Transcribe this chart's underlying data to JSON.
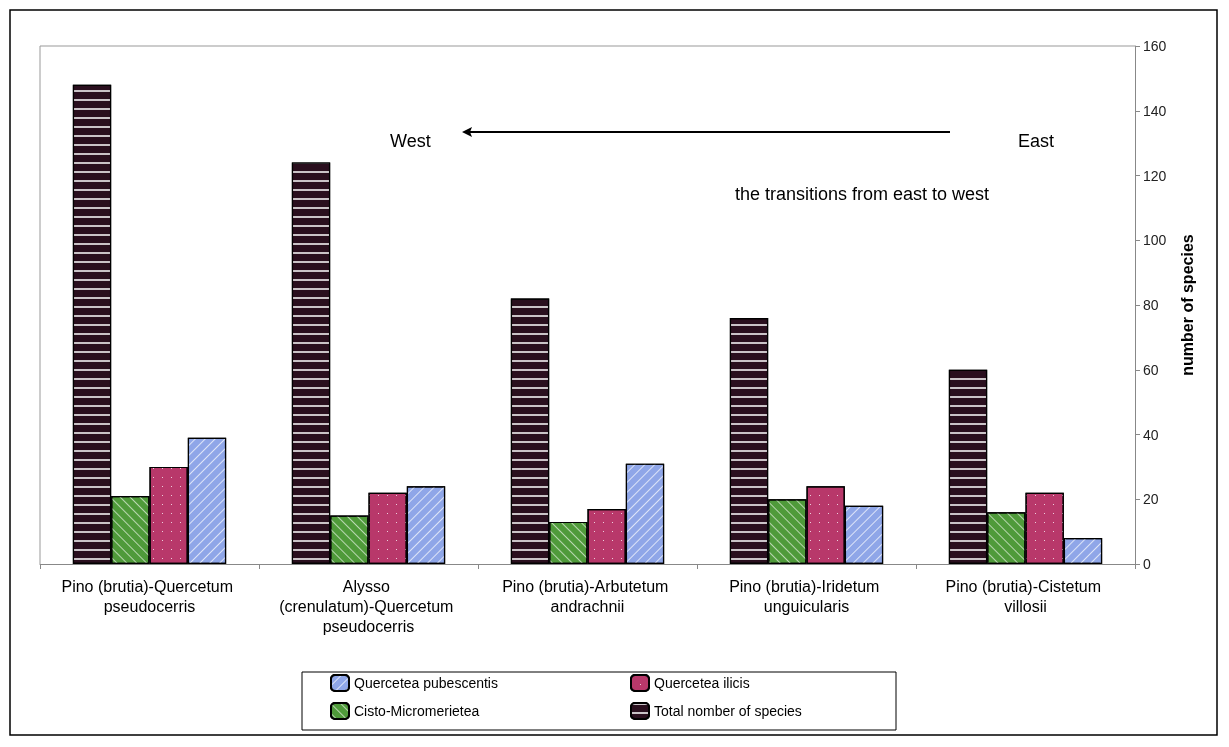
{
  "chart_data": {
    "type": "bar",
    "ylabel": "number of species",
    "categories": [
      "Pino (brutia)-Quercetum pseudocerris",
      "Alysso (crenulatum)-Quercetum pseudocerris",
      "Pino (brutia)-Arbutetum andrachnii",
      "Pino (brutia)-Iridetum unguicularis",
      "Pino (brutia)-Cistetum villosii"
    ],
    "series": [
      {
        "name": "Total nomber of species",
        "color": "#2a0f1e",
        "values": [
          148,
          124,
          82,
          76,
          60
        ]
      },
      {
        "name": "Cisto-Micromerietea",
        "color": "#4f9a3a",
        "values": [
          21,
          15,
          13,
          20,
          16
        ]
      },
      {
        "name": "Quercetea ilicis",
        "color": "#b8386a",
        "values": [
          30,
          22,
          17,
          24,
          22
        ]
      },
      {
        "name": "Quercetea pubescentis",
        "color": "#8fa6e8",
        "values": [
          39,
          24,
          31,
          18,
          8
        ]
      }
    ],
    "ylim": [
      0,
      160
    ],
    "yticks": [
      0,
      20,
      40,
      60,
      80,
      100,
      120,
      140,
      160
    ],
    "grid": false,
    "legend": "bottom",
    "annotations": [
      "West",
      "East",
      "the transitions from east to west"
    ]
  }
}
